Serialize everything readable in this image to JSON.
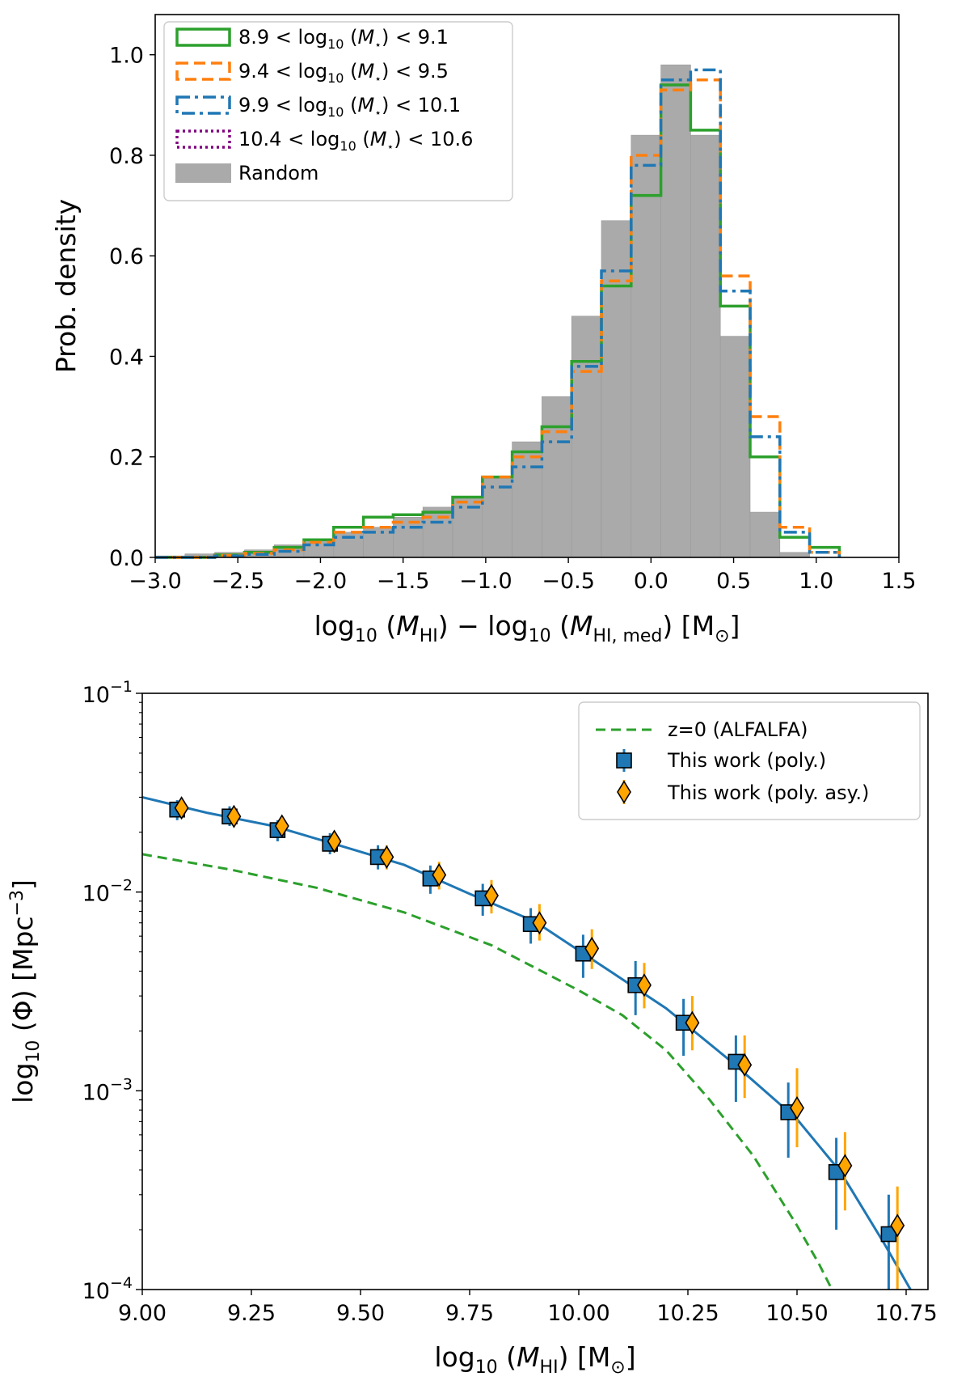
{
  "chart_data": [
    {
      "type": "histogram",
      "title": "",
      "xlabel": "log10(M_HI) - log10(M_HI,med) [M_sun]",
      "ylabel": "Prob. density",
      "xlim": [
        -3.0,
        1.5
      ],
      "ylim": [
        0.0,
        1.08
      ],
      "xticks": [
        "-3.0",
        "-2.5",
        "-2.0",
        "-1.5",
        "-1.0",
        "-0.5",
        "0.0",
        "0.5",
        "1.0",
        "1.5"
      ],
      "yticks": [
        "0.0",
        "0.2",
        "0.4",
        "0.6",
        "0.8",
        "1.0"
      ],
      "legend_position": "top-left",
      "bin_edges": [
        -3.0,
        -2.82,
        -2.64,
        -2.46,
        -2.28,
        -2.1,
        -1.92,
        -1.74,
        -1.56,
        -1.38,
        -1.2,
        -1.02,
        -0.84,
        -0.66,
        -0.48,
        -0.3,
        -0.12,
        0.06,
        0.24,
        0.42,
        0.6,
        0.78,
        0.96,
        1.14
      ],
      "series": [
        {
          "name": "8.9 < log10(M*) < 9.1",
          "label_parts": [
            "8.9 < log",
            "10",
            " (M",
            "*",
            ") < 9.1"
          ],
          "color": "#2ca02c",
          "style": "solid",
          "values": [
            0.0,
            0.0,
            0.005,
            0.01,
            0.02,
            0.035,
            0.06,
            0.08,
            0.085,
            0.09,
            0.12,
            0.16,
            0.21,
            0.26,
            0.39,
            0.54,
            0.72,
            0.94,
            0.85,
            0.5,
            0.2,
            0.04,
            0.02
          ]
        },
        {
          "name": "9.4 < log10(M*) < 9.5",
          "label_parts": [
            "9.4 < log",
            "10",
            " (M",
            "*",
            ") < 9.5"
          ],
          "color": "#ff7f0e",
          "style": "dashed",
          "values": [
            0.0,
            0.0,
            0.004,
            0.008,
            0.015,
            0.03,
            0.05,
            0.06,
            0.07,
            0.08,
            0.11,
            0.16,
            0.2,
            0.25,
            0.37,
            0.55,
            0.8,
            0.93,
            0.95,
            0.56,
            0.28,
            0.06,
            0.01
          ]
        },
        {
          "name": "9.9 < log10(M*) < 10.1",
          "label_parts": [
            "9.9 < log",
            "10",
            " (M",
            "*",
            ") < 10.1"
          ],
          "color": "#1f77b4",
          "style": "dashdot",
          "values": [
            0.0,
            0.0,
            0.003,
            0.006,
            0.012,
            0.025,
            0.04,
            0.05,
            0.06,
            0.07,
            0.1,
            0.14,
            0.18,
            0.23,
            0.38,
            0.57,
            0.78,
            0.95,
            0.97,
            0.53,
            0.24,
            0.05,
            0.01
          ]
        },
        {
          "name": "10.4 < log10(M*) < 10.6",
          "label_parts": [
            "10.4 < log",
            "10",
            " (M",
            "*",
            ") < 10.6"
          ],
          "color": "#800080",
          "style": "dotted",
          "values": []
        },
        {
          "name": "Random",
          "label_parts": [
            "Random"
          ],
          "color": "#aaaaaa",
          "style": "fill",
          "values": [
            0.003,
            0.007,
            0.01,
            0.015,
            0.025,
            0.035,
            0.05,
            0.06,
            0.08,
            0.1,
            0.12,
            0.16,
            0.23,
            0.32,
            0.48,
            0.67,
            0.84,
            0.98,
            0.84,
            0.44,
            0.09,
            0.01,
            0.0
          ]
        }
      ]
    },
    {
      "type": "scatter_line",
      "title": "",
      "xlabel": "log10(M_HI) [M_sun]",
      "ylabel": "log10(Phi) [Mpc^-3]",
      "xscale": "linear",
      "yscale": "log",
      "xlim": [
        9.0,
        10.8
      ],
      "ylim": [
        0.0001,
        0.1
      ],
      "xticks": [
        "9.00",
        "9.25",
        "9.50",
        "9.75",
        "10.00",
        "10.25",
        "10.50",
        "10.75"
      ],
      "yticks": [
        "10^-1",
        "10^-2",
        "10^-3",
        "10^-4"
      ],
      "legend_position": "top-right",
      "fit_line": {
        "name": "poly fit",
        "color": "#1f77b4",
        "x": [
          9.0,
          9.15,
          9.3,
          9.45,
          9.6,
          9.75,
          9.9,
          10.05,
          10.2,
          10.35,
          10.5,
          10.6,
          10.7,
          10.76
        ],
        "y": [
          0.03,
          0.025,
          0.0215,
          0.0172,
          0.0137,
          0.0098,
          0.0071,
          0.0043,
          0.0026,
          0.0014,
          0.00072,
          0.00039,
          0.00017,
          0.0001
        ]
      },
      "series": [
        {
          "name": "z=0 (ALFALFA)",
          "color": "#2ca02c",
          "style": "dashed",
          "x": [
            9.0,
            9.2,
            9.4,
            9.6,
            9.8,
            10.0,
            10.1,
            10.2,
            10.3,
            10.4,
            10.5,
            10.55,
            10.58
          ],
          "y": [
            0.0155,
            0.013,
            0.0105,
            0.0079,
            0.0054,
            0.0032,
            0.0024,
            0.0016,
            0.0009,
            0.00047,
            0.00021,
            0.000135,
            0.0001
          ]
        },
        {
          "name": "This work (poly.)",
          "color": "#1f77b4",
          "marker": "square",
          "x": [
            9.08,
            9.2,
            9.31,
            9.43,
            9.54,
            9.66,
            9.78,
            9.89,
            10.01,
            10.13,
            10.24,
            10.36,
            10.48,
            10.59,
            10.71
          ],
          "y": [
            0.026,
            0.024,
            0.0205,
            0.0175,
            0.015,
            0.0117,
            0.0093,
            0.0069,
            0.0049,
            0.0034,
            0.0022,
            0.0014,
            0.00078,
            0.00039,
            0.00019
          ],
          "err_lo": [
            0.023,
            0.0215,
            0.018,
            0.0155,
            0.013,
            0.0098,
            0.0076,
            0.0055,
            0.0037,
            0.0024,
            0.0015,
            0.00088,
            0.00046,
            0.0002,
            8e-05
          ],
          "err_hi": [
            0.029,
            0.027,
            0.023,
            0.0198,
            0.0172,
            0.0136,
            0.011,
            0.0083,
            0.0061,
            0.0045,
            0.0029,
            0.0019,
            0.0011,
            0.00058,
            0.0003
          ]
        },
        {
          "name": "This work (poly. asy.)",
          "color": "#ffa500",
          "marker": "diamond",
          "x": [
            9.09,
            9.21,
            9.32,
            9.44,
            9.56,
            9.68,
            9.8,
            9.91,
            10.03,
            10.15,
            10.26,
            10.38,
            10.5,
            10.61,
            10.73
          ],
          "y": [
            0.0265,
            0.024,
            0.0215,
            0.018,
            0.015,
            0.0122,
            0.0096,
            0.007,
            0.0052,
            0.0034,
            0.0022,
            0.00135,
            0.00082,
            0.00042,
            0.00021
          ],
          "err_lo": [
            0.0235,
            0.0215,
            0.019,
            0.0158,
            0.013,
            0.0103,
            0.0078,
            0.0057,
            0.0041,
            0.0026,
            0.0016,
            0.00092,
            0.00052,
            0.00025,
            9e-05
          ],
          "err_hi": [
            0.0295,
            0.0265,
            0.024,
            0.0202,
            0.0172,
            0.0142,
            0.0115,
            0.0087,
            0.0065,
            0.0044,
            0.003,
            0.0019,
            0.0013,
            0.00062,
            0.00033
          ]
        }
      ]
    }
  ]
}
